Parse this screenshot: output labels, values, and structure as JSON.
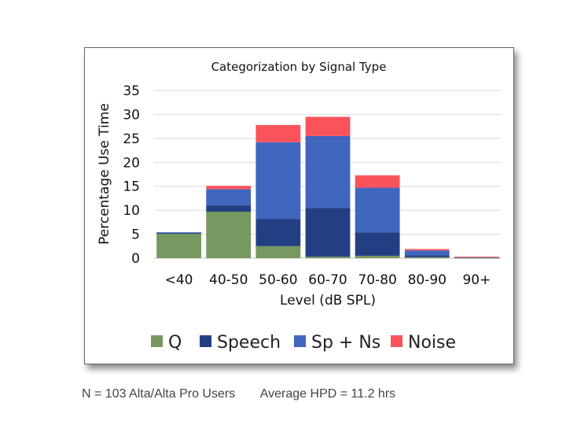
{
  "chart_data": {
    "type": "bar",
    "stacked": true,
    "title": "Categorization by Signal Type",
    "xlabel": "Level (dB SPL)",
    "ylabel": "Percentage Use Time",
    "ylim": [
      0,
      35
    ],
    "yticks": [
      "0",
      "5",
      "10",
      "15",
      "20",
      "25",
      "30",
      "35"
    ],
    "grid": true,
    "legend_position": "bottom",
    "categories": [
      "<40",
      "40-50",
      "50-60",
      "60-70",
      "70-80",
      "80-90",
      "90+"
    ],
    "series": [
      {
        "name": "Q",
        "color": "#77985E",
        "values": [
          5.1,
          9.7,
          2.5,
          0.3,
          0.5,
          0.2,
          0.1
        ]
      },
      {
        "name": "Speech",
        "color": "#233F84",
        "values": [
          0.2,
          1.3,
          5.7,
          10.2,
          4.9,
          0.4,
          0.1
        ]
      },
      {
        "name": "Sp + Ns",
        "color": "#4166BE",
        "values": [
          0.1,
          3.4,
          16.0,
          15.0,
          9.3,
          1.0,
          0.05
        ]
      },
      {
        "name": "Noise",
        "color": "#FA535B",
        "values": [
          0.0,
          0.7,
          3.6,
          4.0,
          2.6,
          0.3,
          0.05
        ]
      }
    ]
  },
  "footer": {
    "users": "N = 103 Alta/Alta Pro Users",
    "hpd": "Average HPD = 11.2 hrs"
  }
}
